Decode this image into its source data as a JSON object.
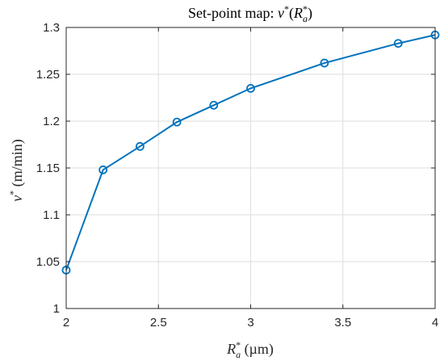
{
  "chart_data": {
    "type": "line",
    "title": {
      "prefix": "Set-point map: ",
      "var": "v",
      "sup": "*",
      "open": "(",
      "arg": "R",
      "arg_sup": "*",
      "arg_sub": "a",
      "close": ")"
    },
    "xlabel": {
      "var": "R",
      "sup": "*",
      "sub": "a",
      "unit": " (µm)"
    },
    "ylabel": {
      "var": "v",
      "sup": "*",
      "unit": " (m/min)"
    },
    "xlim": [
      2,
      4
    ],
    "ylim": [
      1,
      1.3
    ],
    "xticks": [
      2,
      2.5,
      3,
      3.5,
      4
    ],
    "xtick_labels": [
      "2",
      "2.5",
      "3",
      "3.5",
      "4"
    ],
    "yticks": [
      1,
      1.05,
      1.1,
      1.15,
      1.2,
      1.25,
      1.3
    ],
    "ytick_labels": [
      "1",
      "1.05",
      "1.1",
      "1.15",
      "1.2",
      "1.25",
      "1.3"
    ],
    "grid": true,
    "color": "#0072bd",
    "marker": "circle",
    "series": [
      {
        "x": [
          2.0,
          2.2,
          2.4,
          2.6,
          2.8,
          3.0,
          3.4,
          3.8,
          4.0
        ],
        "y": [
          1.041,
          1.148,
          1.173,
          1.199,
          1.217,
          1.235,
          1.262,
          1.283,
          1.292
        ]
      }
    ]
  }
}
